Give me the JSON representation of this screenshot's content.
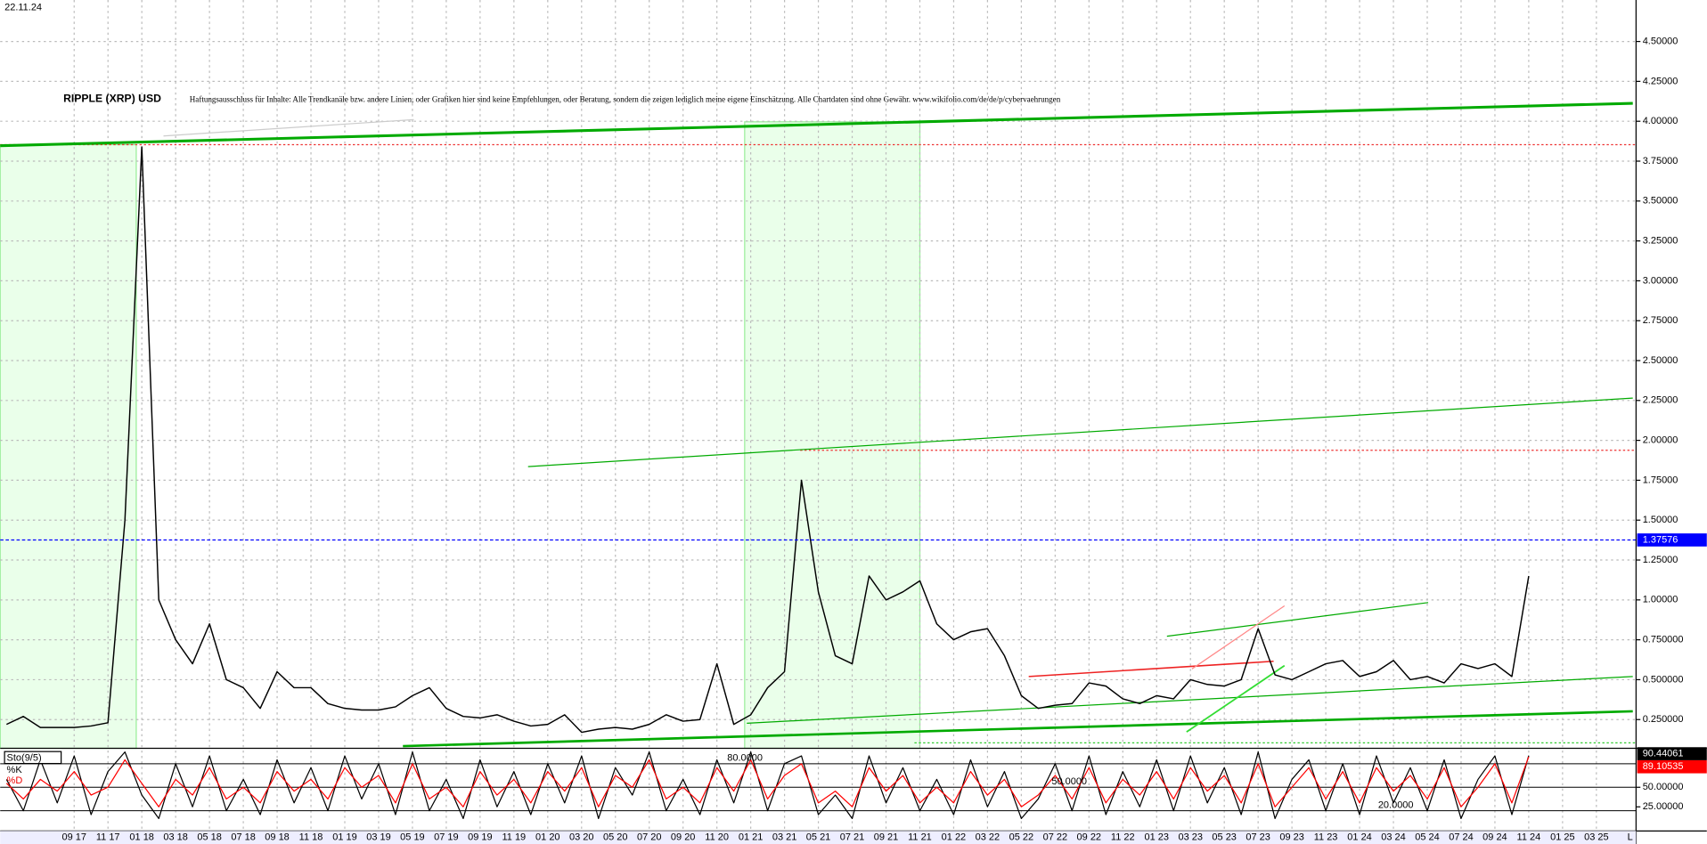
{
  "date": "22.11.24",
  "chart_data": [
    {
      "type": "line",
      "title": "RIPPLE (XRP) USD",
      "subtitle": "Haftungsausschluss für Inhalte: Alle Trendkanäle bzw. andere Linien, oder Grafiken hier sind keine Empfehlungen, oder Beratung, sondern die zeigen lediglich meine eigene Einschätzung. Alle Chartdaten sind ohne Gewähr. www.wikifolio.com/de/de/p/cybervaehrungen",
      "categories": [
        null,
        null,
        null,
        null,
        "09 17",
        null,
        "11 17",
        null,
        "01 18",
        null,
        "03 18",
        null,
        "05 18",
        null,
        "07 18",
        null,
        "09 18",
        null,
        "11 18",
        null,
        "01 19",
        null,
        "03 19",
        null,
        "05 19",
        null,
        "07 19",
        null,
        "09 19",
        null,
        "11 19",
        null,
        "01 20",
        null,
        "03 20",
        null,
        "05 20",
        null,
        "07 20",
        null,
        "09 20",
        null,
        "11 20",
        null,
        "01 21",
        null,
        "03 21",
        null,
        "05 21",
        null,
        "07 21",
        null,
        "09 21",
        null,
        "11 21",
        null,
        "01 22",
        null,
        "03 22",
        null,
        "05 22",
        null,
        "07 22",
        null,
        "09 22",
        null,
        "11 22",
        null,
        "01 23",
        null,
        "03 23",
        null,
        "05 23",
        null,
        "07 23",
        null,
        "09 23",
        null,
        "11 23",
        null,
        "01 24",
        null,
        "03 24",
        null,
        "05 24",
        null,
        "07 24",
        null,
        "09 24",
        null,
        "11 24",
        null,
        "01 25",
        null,
        "03 25",
        null
      ],
      "series": [
        {
          "color": "#000000",
          "values": [
            0.22,
            0.27,
            0.2,
            0.2,
            0.2,
            0.21,
            0.23,
            1.5,
            3.84,
            1.0,
            0.75,
            0.6,
            0.85,
            0.5,
            0.45,
            0.32,
            0.55,
            0.45,
            0.45,
            0.35,
            0.32,
            0.31,
            0.31,
            0.33,
            0.4,
            0.45,
            0.32,
            0.27,
            0.26,
            0.28,
            0.24,
            0.21,
            0.22,
            0.28,
            0.17,
            0.19,
            0.2,
            0.19,
            0.22,
            0.28,
            0.24,
            0.25,
            0.6,
            0.22,
            0.28,
            0.45,
            0.55,
            1.75,
            1.05,
            0.65,
            0.6,
            1.15,
            1.0,
            1.05,
            1.12,
            0.85,
            0.75,
            0.8,
            0.82,
            0.65,
            0.4,
            0.32,
            0.34,
            0.35,
            0.48,
            0.46,
            0.38,
            0.35,
            0.4,
            0.38,
            0.5,
            0.47,
            0.46,
            0.5,
            0.82,
            0.53,
            0.5,
            0.55,
            0.6,
            0.62,
            0.52,
            0.55,
            0.62,
            0.5,
            0.52,
            0.48,
            0.6,
            0.57,
            0.6,
            0.52,
            1.15,
            null,
            null,
            null,
            null,
            null
          ]
        }
      ],
      "current_price": 1.37576,
      "current_price_color": "#0000ff",
      "ylim": [
        0.07,
        4.76
      ],
      "yticks": [
        {
          "value": 0.25,
          "label": "0.250000"
        },
        {
          "value": 0.5,
          "label": "0.500000"
        },
        {
          "value": 0.75,
          "label": "0.750000"
        },
        {
          "value": 1,
          "label": "1.00000"
        },
        {
          "value": 1.25,
          "label": "1.25000"
        },
        {
          "value": 1.5,
          "label": "1.50000"
        },
        {
          "value": 1.75,
          "label": "1.75000"
        },
        {
          "value": 2,
          "label": "2.00000"
        },
        {
          "value": 2.25,
          "label": "2.25000"
        },
        {
          "value": 2.5,
          "label": "2.50000"
        },
        {
          "value": 2.75,
          "label": "2.75000"
        },
        {
          "value": 3,
          "label": "3.00000"
        },
        {
          "value": 3.25,
          "label": "3.25000"
        },
        {
          "value": 3.5,
          "label": "3.50000"
        },
        {
          "value": 3.75,
          "label": "3.75000"
        },
        {
          "value": 4,
          "label": "4.00000"
        },
        {
          "value": 4.25,
          "label": "4.25000"
        },
        {
          "value": 4.5,
          "label": "4.50000"
        }
      ],
      "grid": true,
      "x_end_label": "L"
    },
    {
      "type": "line",
      "title": "Sto(9/5)",
      "series": [
        {
          "name": "%K",
          "color": "#000000",
          "values": [
            60,
            20,
            85,
            30,
            90,
            15,
            70,
            95,
            40,
            10,
            80,
            25,
            90,
            20,
            60,
            15,
            85,
            30,
            75,
            20,
            90,
            35,
            80,
            15,
            95,
            20,
            60,
            10,
            85,
            25,
            70,
            15,
            80,
            30,
            90,
            10,
            75,
            40,
            95,
            20,
            60,
            15,
            85,
            30,
            95,
            20,
            80,
            90,
            15,
            40,
            10,
            90,
            30,
            75,
            20,
            60,
            15,
            85,
            25,
            70,
            10,
            35,
            80,
            20,
            90,
            15,
            70,
            25,
            85,
            20,
            90,
            30,
            75,
            15,
            95,
            10,
            60,
            85,
            20,
            80,
            15,
            90,
            30,
            75,
            20,
            85,
            10,
            60,
            90,
            15,
            90.44061,
            null,
            null,
            null,
            null,
            null
          ]
        },
        {
          "name": "%D",
          "color": "#ff0000",
          "values": [
            55,
            35,
            60,
            45,
            70,
            40,
            50,
            85,
            55,
            25,
            60,
            40,
            75,
            35,
            50,
            30,
            70,
            45,
            60,
            35,
            75,
            50,
            65,
            30,
            80,
            35,
            50,
            25,
            70,
            40,
            60,
            30,
            70,
            45,
            75,
            25,
            65,
            50,
            85,
            35,
            50,
            30,
            75,
            45,
            85,
            35,
            65,
            80,
            30,
            45,
            25,
            75,
            45,
            65,
            30,
            50,
            30,
            70,
            40,
            60,
            25,
            40,
            65,
            35,
            75,
            30,
            60,
            40,
            70,
            35,
            75,
            45,
            65,
            30,
            80,
            25,
            50,
            75,
            35,
            70,
            30,
            75,
            45,
            65,
            35,
            75,
            25,
            50,
            80,
            30,
            89.10535,
            null,
            null,
            null,
            null,
            null
          ]
        }
      ],
      "ylim": [
        -3,
        97
      ],
      "yticks": [
        {
          "value": 25,
          "label": "25.00000"
        },
        {
          "value": 50,
          "label": "50.00000"
        }
      ],
      "levels": [
        {
          "value": 80,
          "label": "80.0000"
        },
        {
          "value": 50,
          "label": "50.0000"
        },
        {
          "value": 20,
          "label": "20.0000"
        }
      ]
    }
  ]
}
